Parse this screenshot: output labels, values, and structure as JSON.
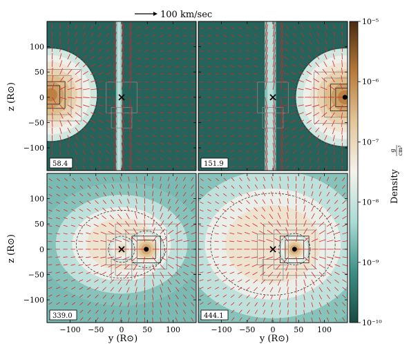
{
  "figure": {
    "velocity_key_label": "100 km/sec",
    "x_axis_label": "y  (R⊙)",
    "y_axis_label": "z  (R⊙)"
  },
  "chart_data": {
    "type": "heatmap",
    "description_free": true,
    "panels": [
      {
        "time_label": "58.4",
        "row": 0,
        "col": 0,
        "blobs": [
          {
            "y": -138,
            "z": 5,
            "r": 90,
            "peak": -5.9
          }
        ],
        "companion_x": {
          "y": 0,
          "z": 0
        },
        "companion_dot": null,
        "shock": {
          "y": -5,
          "z": 0,
          "width": 12,
          "height": 250
        }
      },
      {
        "time_label": "151.9",
        "row": 0,
        "col": 1,
        "blobs": [
          {
            "y": 140,
            "z": 0,
            "r": 95,
            "peak": -5.9
          }
        ],
        "companion_x": {
          "y": 0,
          "z": 0
        },
        "companion_dot": {
          "y": 140,
          "z": 0
        },
        "shock": {
          "y": -5,
          "z": 0,
          "width": 22,
          "height": 250
        }
      },
      {
        "time_label": "339.0",
        "row": 1,
        "col": 0,
        "blobs": [
          {
            "y": 48,
            "z": 0,
            "r": 35,
            "peak": -6.0
          },
          {
            "y": 0,
            "z": 0,
            "r": 25,
            "peak": -6.8
          }
        ],
        "companion_x": {
          "y": 0,
          "z": 0
        },
        "companion_dot": {
          "y": 48,
          "z": 0
        },
        "envelope": {
          "y": 0,
          "z": 10,
          "ry": 160,
          "rz": 120
        }
      },
      {
        "time_label": "444.1",
        "row": 1,
        "col": 1,
        "blobs": [
          {
            "y": 42,
            "z": 0,
            "r": 30,
            "peak": -6.0
          }
        ],
        "companion_x": {
          "y": 0,
          "z": 0
        },
        "companion_dot": {
          "y": 42,
          "z": 0
        },
        "envelope": {
          "y": 0,
          "z": 10,
          "ry": 220,
          "rz": 180
        }
      }
    ],
    "x_ticks": [
      "−100",
      "−50",
      "0",
      "50",
      "100"
    ],
    "x_tick_values": [
      -100,
      -50,
      0,
      50,
      100
    ],
    "y_ticks": [
      "100",
      "50",
      "0",
      "−50",
      "−100"
    ],
    "y_tick_values": [
      100,
      50,
      0,
      -50,
      -100
    ],
    "xlim": [
      -145,
      145
    ],
    "ylim": [
      -145,
      150
    ],
    "colorbar": {
      "label": "Density",
      "unit_num": "g",
      "unit_den": "cm³",
      "tick_labels": [
        "10⁻⁵",
        "10⁻⁶",
        "10⁻⁷",
        "10⁻⁸",
        "10⁻⁹",
        "10⁻¹⁰"
      ],
      "tick_exponents": [
        -5,
        -6,
        -7,
        -8,
        -9,
        -10
      ],
      "range_log10": [
        -10,
        -5
      ],
      "colormap": [
        "#1a4a42",
        "#3b8f86",
        "#a9dcd4",
        "#f4f2ec",
        "#e4c79a",
        "#b87a3a",
        "#4a2a10"
      ]
    },
    "arrow_color": "#e0202a",
    "mesh_color": "#8a8a8a"
  }
}
